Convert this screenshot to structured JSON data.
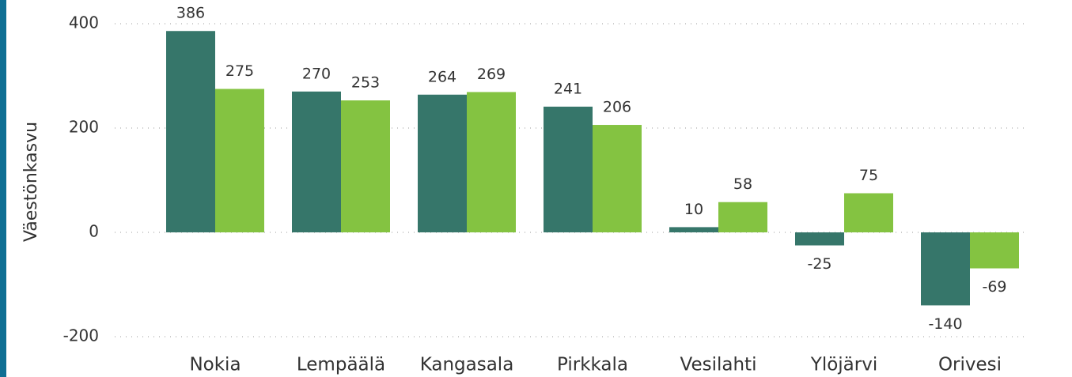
{
  "chart_data": {
    "type": "bar",
    "y_label": "Väestönkasvu",
    "categories": [
      "Nokia",
      "Lempäälä",
      "Kangasala",
      "Pirkkala",
      "Vesilahti",
      "Ylöjärvi",
      "Orivesi"
    ],
    "series": [
      {
        "color": "#36766a",
        "values": [
          386,
          270,
          264,
          241,
          10,
          -25,
          -140
        ]
      },
      {
        "color": "#84c341",
        "values": [
          275,
          253,
          269,
          206,
          58,
          75,
          -69
        ]
      }
    ],
    "ylim": [
      -200,
      400
    ],
    "yticks": [
      400,
      200,
      0,
      -200
    ],
    "grid": true
  }
}
